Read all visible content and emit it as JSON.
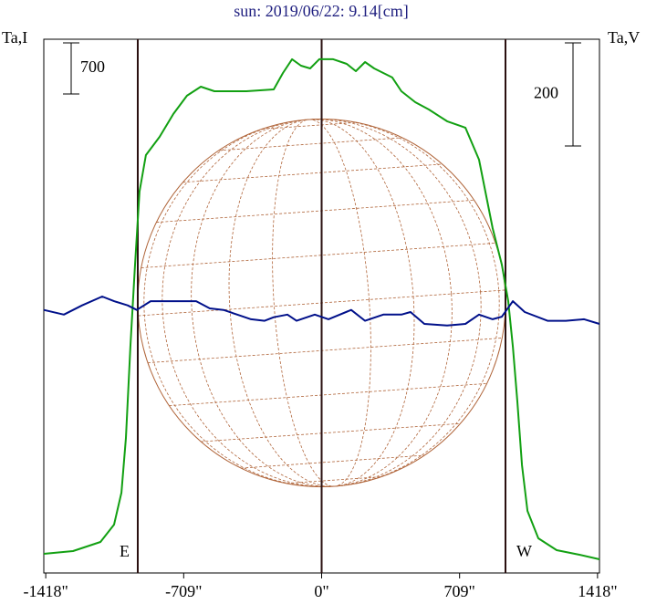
{
  "chart_data": {
    "type": "line",
    "title": "sun: 2019/06/22: 9.14[cm]",
    "y_label": "Ta,I",
    "y2_label": "Ta,V",
    "xlim": [
      -1428,
      1428
    ],
    "ylim": [
      0,
      7312
    ],
    "y2lim": [
      0,
      1035
    ],
    "xticks": [
      {
        "value": -1418,
        "label": "-1418\""
      },
      {
        "value": -709,
        "label": "-709\""
      },
      {
        "value": 0,
        "label": "0\""
      },
      {
        "value": 709,
        "label": "709\""
      },
      {
        "value": 1418,
        "label": "1418\""
      }
    ],
    "meridian": 0,
    "limbs": [
      {
        "value": -945,
        "label": "E"
      },
      {
        "value": 945,
        "label": "W"
      }
    ],
    "scale_bars": [
      {
        "value": 700,
        "label": "700",
        "axis": "y"
      },
      {
        "value": 200,
        "label": "200",
        "axis": "y2"
      }
    ],
    "series": [
      {
        "color": "#12a012",
        "axis": "y",
        "x": [
          -1428,
          -1278,
          -1137,
          -1067,
          -1029,
          -1006,
          -983,
          -959,
          -936,
          -903,
          -833,
          -762,
          -692,
          -621,
          -551,
          -481,
          -387,
          -246,
          -199,
          -152,
          -106,
          -59,
          -12,
          59,
          129,
          176,
          223,
          270,
          317,
          363,
          410,
          481,
          551,
          645,
          739,
          809,
          879,
          926,
          959,
          983,
          1006,
          1030,
          1058,
          1114,
          1208,
          1325,
          1428
        ],
        "values": [
          262,
          300,
          425,
          662,
          1100,
          1850,
          3100,
          4225,
          5225,
          5725,
          5975,
          6288,
          6538,
          6662,
          6600,
          6600,
          6600,
          6625,
          6850,
          7038,
          6950,
          6912,
          7038,
          7038,
          6975,
          6875,
          7000,
          6912,
          6850,
          6788,
          6600,
          6450,
          6350,
          6188,
          6100,
          5662,
          4725,
          4225,
          3725,
          3100,
          2350,
          1475,
          850,
          475,
          312,
          250,
          188
        ]
      },
      {
        "color": "#00108a",
        "axis": "y2",
        "x": [
          -1428,
          -1325,
          -1231,
          -1128,
          -1067,
          -997,
          -950,
          -879,
          -762,
          -645,
          -575,
          -504,
          -434,
          -363,
          -293,
          -246,
          -176,
          -129,
          -35,
          35,
          152,
          223,
          317,
          410,
          457,
          528,
          645,
          739,
          809,
          879,
          926,
          983,
          1044,
          1161,
          1255,
          1349,
          1428
        ],
        "values": [
          510,
          501,
          519,
          536,
          527,
          519,
          510,
          527,
          527,
          527,
          513,
          510,
          501,
          492,
          489,
          496,
          501,
          489,
          501,
          492,
          510,
          489,
          501,
          501,
          506,
          483,
          480,
          483,
          501,
          492,
          497,
          527,
          506,
          489,
          489,
          492,
          483
        ]
      }
    ]
  }
}
